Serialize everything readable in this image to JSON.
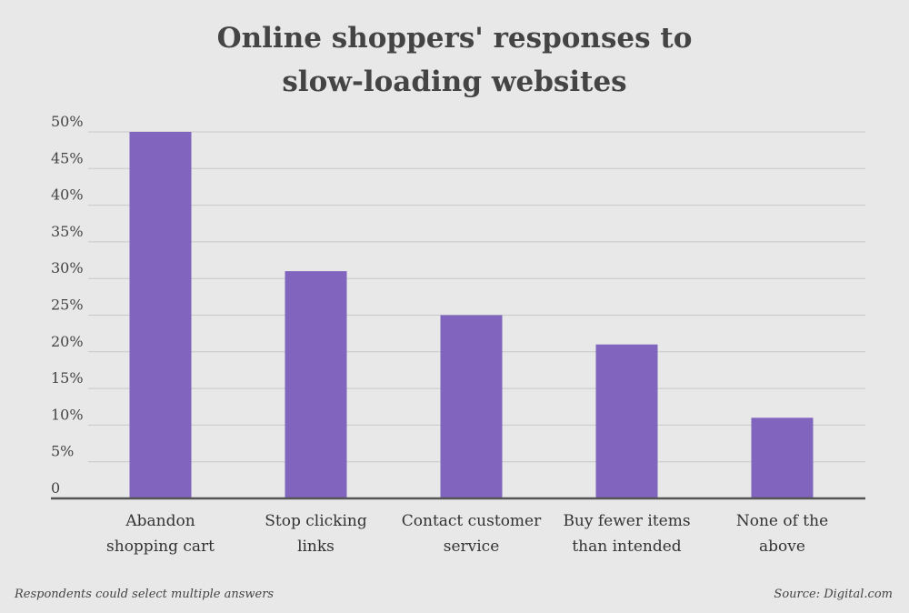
{
  "chart_data": {
    "type": "bar",
    "title_lines": [
      "Online shoppers' responses to",
      "slow-loading websites"
    ],
    "categories": [
      [
        "Abandon",
        "shopping cart"
      ],
      [
        "Stop clicking",
        "links"
      ],
      [
        "Contact customer",
        "service"
      ],
      [
        "Buy fewer items",
        "than intended"
      ],
      [
        "None of the",
        "above"
      ]
    ],
    "values": [
      50,
      31,
      25,
      21,
      11
    ],
    "ylim": [
      0,
      50
    ],
    "yticks": [
      0,
      5,
      10,
      15,
      20,
      25,
      30,
      35,
      40,
      45,
      50
    ],
    "ytick_labels": [
      "0",
      "5%",
      "10%",
      "15%",
      "20%",
      "25%",
      "30%",
      "35%",
      "40%",
      "45%",
      "50%"
    ],
    "grid": true,
    "bar_color": "#8064be",
    "grid_color": "#c8c8c8",
    "axis_color": "#555555"
  },
  "footnote": "Respondents could select multiple answers",
  "source": "Source: Digital.com"
}
